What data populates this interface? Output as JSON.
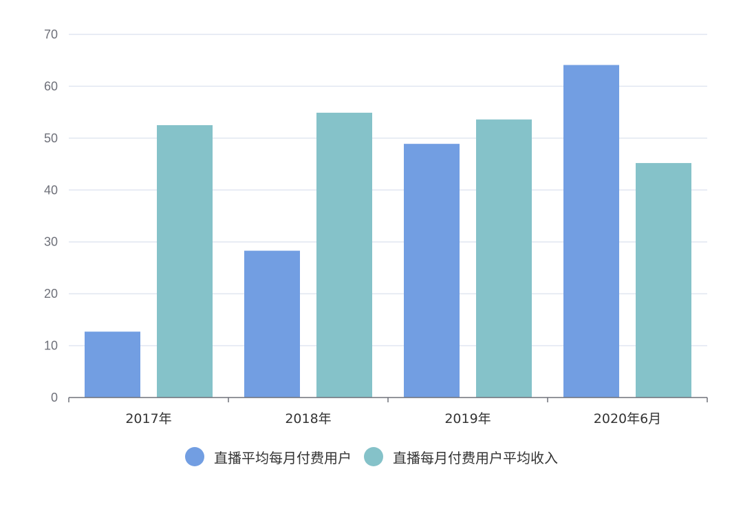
{
  "chart_data": {
    "type": "bar",
    "title": "",
    "xlabel": "",
    "ylabel": "",
    "ylim": [
      0,
      70
    ],
    "yticks": [
      0,
      10,
      20,
      30,
      40,
      50,
      60,
      70
    ],
    "grid": true,
    "legend_position": "bottom",
    "categories": [
      "2017年",
      "2018年",
      "2019年",
      "2020年6月"
    ],
    "series": [
      {
        "name": "直播平均每月付费用户",
        "color": "#729ee2",
        "values": [
          12.7,
          28.3,
          48.9,
          64.1
        ]
      },
      {
        "name": "直播每月付费用户平均收入",
        "color": "#85c2c9",
        "values": [
          52.5,
          54.9,
          53.6,
          45.2
        ]
      }
    ]
  }
}
